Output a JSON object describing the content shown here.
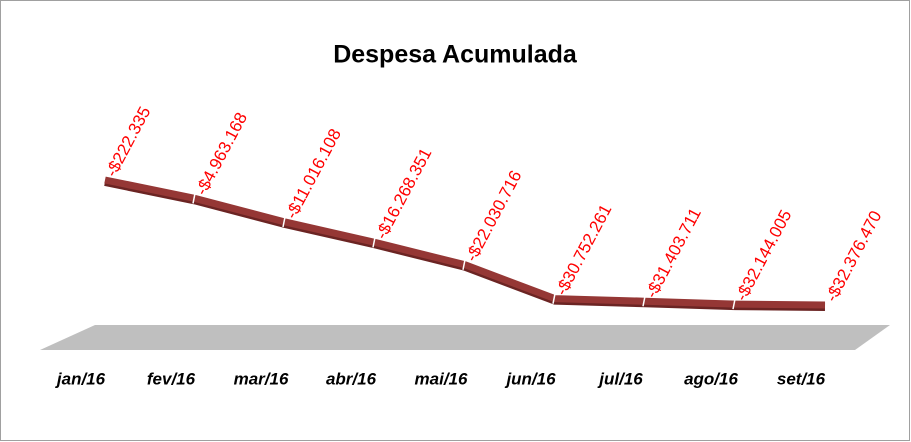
{
  "chart_data": {
    "type": "line",
    "title": "Despesa Acumulada",
    "categories": [
      "jan/16",
      "fev/16",
      "mar/16",
      "abr/16",
      "mai/16",
      "jun/16",
      "jul/16",
      "ago/16",
      "set/16"
    ],
    "series": [
      {
        "name": "Despesa Acumulada",
        "color": "#953735",
        "values": [
          -222335,
          -4963168,
          -11016108,
          -16268351,
          -22030716,
          -30752261,
          -31403711,
          -32144005,
          -32376470
        ],
        "value_labels": [
          "-$222.335",
          "-$4.963.168",
          "-$11.016.108",
          "-$16.268.351",
          "-$22.030.716",
          "-$30.752.261",
          "-$31.403.711",
          "-$32.144.005",
          "-$32.376.470"
        ]
      }
    ]
  }
}
